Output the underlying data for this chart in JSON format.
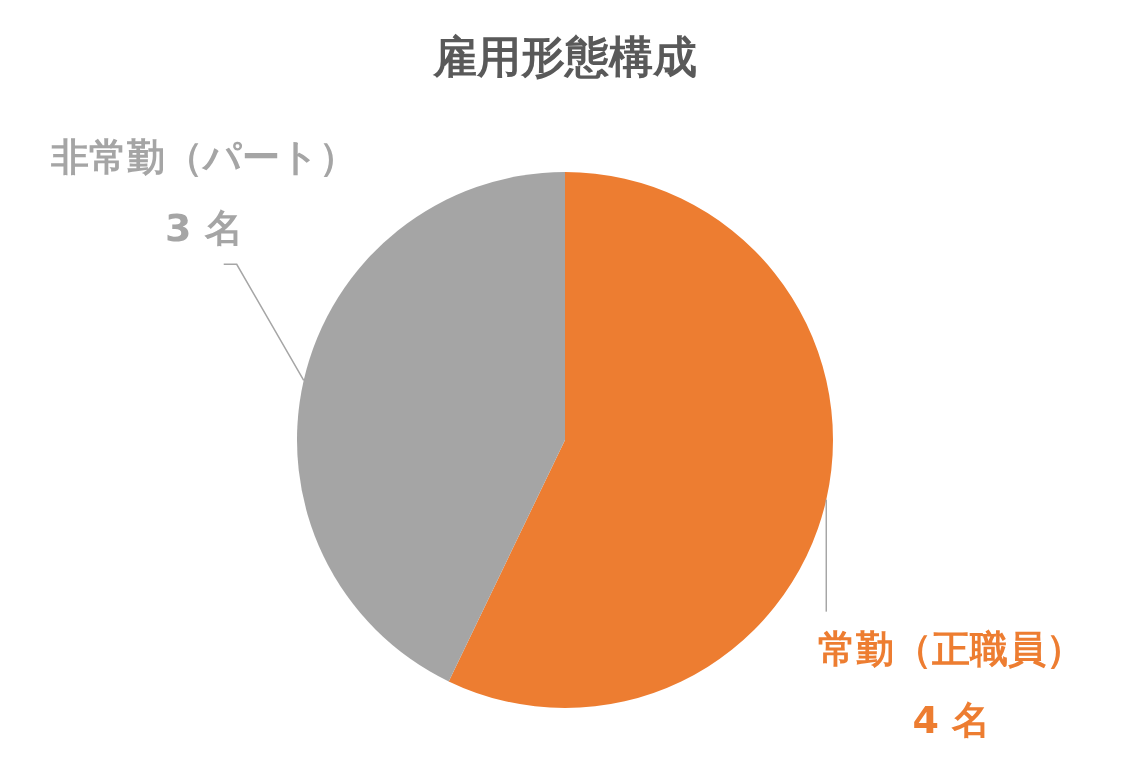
{
  "chart_data": {
    "type": "pie",
    "title": "雇用形態構成",
    "categories": [
      "常勤（正職員）",
      "非常勤（パート）"
    ],
    "values": [
      4,
      3
    ],
    "colors": [
      "#ed7d31",
      "#a5a5a5"
    ],
    "value_labels": [
      "4 名",
      "3 名"
    ]
  }
}
